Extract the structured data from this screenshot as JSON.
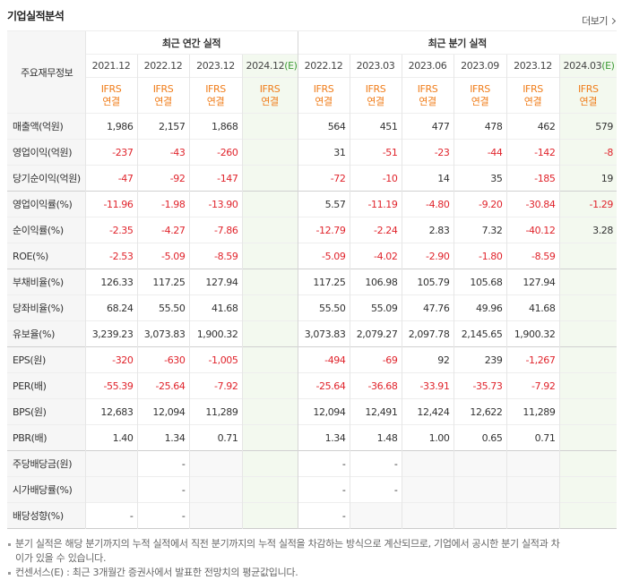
{
  "header": {
    "title": "기업실적분석",
    "more": "더보기"
  },
  "table": {
    "corner": "주요재무정보",
    "groups": [
      {
        "title": "최근 연간 실적",
        "columns": [
          {
            "label": "2021.12",
            "basis": "IFRS",
            "scope": "연결"
          },
          {
            "label": "2022.12",
            "basis": "IFRS",
            "scope": "연결"
          },
          {
            "label": "2023.12",
            "basis": "IFRS",
            "scope": "연결"
          },
          {
            "label": "2024.12",
            "estimate": "(E)",
            "basis": "IFRS",
            "scope": "연결"
          }
        ]
      },
      {
        "title": "최근 분기 실적",
        "columns": [
          {
            "label": "2022.12",
            "basis": "IFRS",
            "scope": "연결"
          },
          {
            "label": "2023.03",
            "basis": "IFRS",
            "scope": "연결"
          },
          {
            "label": "2023.06",
            "basis": "IFRS",
            "scope": "연결"
          },
          {
            "label": "2023.09",
            "basis": "IFRS",
            "scope": "연결"
          },
          {
            "label": "2023.12",
            "basis": "IFRS",
            "scope": "연결"
          },
          {
            "label": "2024.03",
            "estimate": "(E)",
            "basis": "IFRS",
            "scope": "연결"
          }
        ]
      }
    ],
    "rows": [
      {
        "label": "매출액(억원)",
        "cells": [
          "1,986",
          "2,157",
          "1,868",
          null,
          "564",
          "451",
          "477",
          "478",
          "462",
          "579"
        ]
      },
      {
        "label": "영업이익(억원)",
        "cells": [
          "-237",
          "-43",
          "-260",
          null,
          "31",
          "-51",
          "-23",
          "-44",
          "-142",
          "-8"
        ]
      },
      {
        "label": "당기순이익(억원)",
        "cells": [
          "-47",
          "-92",
          "-147",
          null,
          "-72",
          "-10",
          "14",
          "35",
          "-185",
          "19"
        ]
      },
      {
        "label": "영업이익률(%)",
        "cells": [
          "-11.96",
          "-1.98",
          "-13.90",
          null,
          "5.57",
          "-11.19",
          "-4.80",
          "-9.20",
          "-30.84",
          "-1.29"
        ]
      },
      {
        "label": "순이익률(%)",
        "cells": [
          "-2.35",
          "-4.27",
          "-7.86",
          null,
          "-12.79",
          "-2.24",
          "2.83",
          "7.32",
          "-40.12",
          "3.28"
        ]
      },
      {
        "label": "ROE(%)",
        "cells": [
          "-2.53",
          "-5.09",
          "-8.59",
          null,
          "-5.09",
          "-4.02",
          "-2.90",
          "-1.80",
          "-8.59",
          null
        ]
      },
      {
        "label": "부채비율(%)",
        "cells": [
          "126.33",
          "117.25",
          "127.94",
          null,
          "117.25",
          "106.98",
          "105.79",
          "105.68",
          "127.94",
          null
        ]
      },
      {
        "label": "당좌비율(%)",
        "cells": [
          "68.24",
          "55.50",
          "41.68",
          null,
          "55.50",
          "55.09",
          "47.76",
          "49.96",
          "41.68",
          null
        ]
      },
      {
        "label": "유보율(%)",
        "cells": [
          "3,239.23",
          "3,073.83",
          "1,900.32",
          null,
          "3,073.83",
          "2,079.27",
          "2,097.78",
          "2,145.65",
          "1,900.32",
          null
        ]
      },
      {
        "label": "EPS(원)",
        "cells": [
          "-320",
          "-630",
          "-1,005",
          null,
          "-494",
          "-69",
          "92",
          "239",
          "-1,267",
          null
        ]
      },
      {
        "label": "PER(배)",
        "cells": [
          "-55.39",
          "-25.64",
          "-7.92",
          null,
          "-25.64",
          "-36.68",
          "-33.91",
          "-35.73",
          "-7.92",
          null
        ]
      },
      {
        "label": "BPS(원)",
        "cells": [
          "12,683",
          "12,094",
          "11,289",
          null,
          "12,094",
          "12,491",
          "12,424",
          "12,622",
          "11,289",
          null
        ]
      },
      {
        "label": "PBR(배)",
        "cells": [
          "1.40",
          "1.34",
          "0.71",
          null,
          "1.34",
          "1.48",
          "1.00",
          "0.65",
          "0.71",
          null
        ]
      },
      {
        "label": "주당배당금(원)",
        "cells": [
          null,
          "-",
          null,
          null,
          "-",
          "-",
          null,
          null,
          null,
          null
        ]
      },
      {
        "label": "시가배당률(%)",
        "cells": [
          null,
          "-",
          null,
          null,
          "-",
          "-",
          null,
          null,
          null,
          null
        ]
      },
      {
        "label": "배당성향(%)",
        "cells": [
          "-",
          "-",
          null,
          null,
          "-",
          null,
          null,
          null,
          null,
          null
        ]
      }
    ]
  },
  "notes": [
    "분기 실적은 해당 분기까지의 누적 실적에서 직전 분기까지의 누적 실적을 차감하는 방식으로 계산되므로, 기업에서 공시한 분기 실적과 차이가 있을 수 있습니다.",
    "컨센서스(E) : 최근 3개월간 증권사에서 발표한 전망치의 평균값입니다."
  ]
}
